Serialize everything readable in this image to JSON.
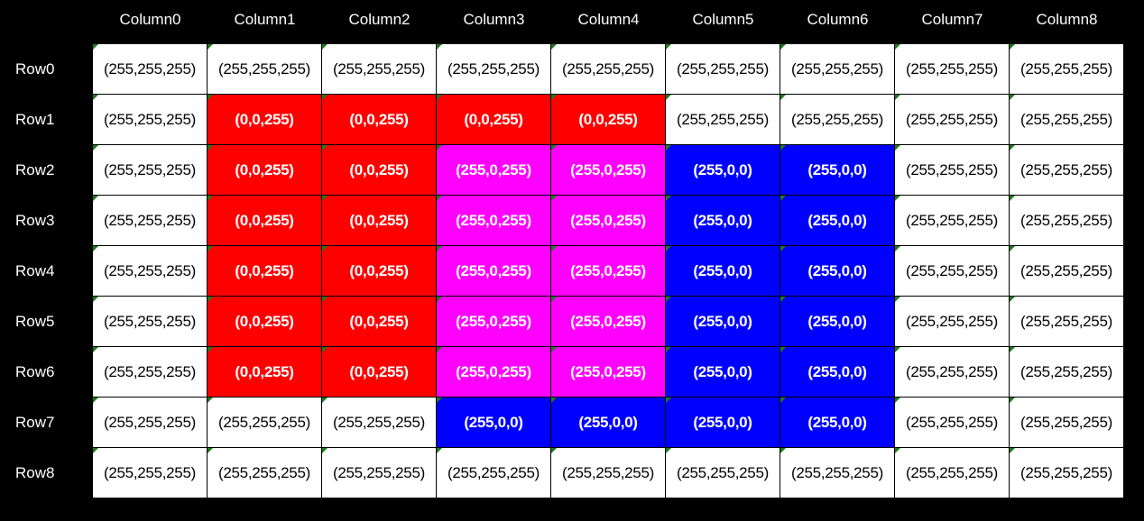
{
  "columns": [
    "Column0",
    "Column1",
    "Column2",
    "Column3",
    "Column4",
    "Column5",
    "Column6",
    "Column7",
    "Column8"
  ],
  "rows": [
    "Row0",
    "Row1",
    "Row2",
    "Row3",
    "Row4",
    "Row5",
    "Row6",
    "Row7",
    "Row8"
  ],
  "cells": [
    [
      "(255,255,255)",
      "(255,255,255)",
      "(255,255,255)",
      "(255,255,255)",
      "(255,255,255)",
      "(255,255,255)",
      "(255,255,255)",
      "(255,255,255)",
      "(255,255,255)"
    ],
    [
      "(255,255,255)",
      "(0,0,255)",
      "(0,0,255)",
      "(0,0,255)",
      "(0,0,255)",
      "(255,255,255)",
      "(255,255,255)",
      "(255,255,255)",
      "(255,255,255)"
    ],
    [
      "(255,255,255)",
      "(0,0,255)",
      "(0,0,255)",
      "(255,0,255)",
      "(255,0,255)",
      "(255,0,0)",
      "(255,0,0)",
      "(255,255,255)",
      "(255,255,255)"
    ],
    [
      "(255,255,255)",
      "(0,0,255)",
      "(0,0,255)",
      "(255,0,255)",
      "(255,0,255)",
      "(255,0,0)",
      "(255,0,0)",
      "(255,255,255)",
      "(255,255,255)"
    ],
    [
      "(255,255,255)",
      "(0,0,255)",
      "(0,0,255)",
      "(255,0,255)",
      "(255,0,255)",
      "(255,0,0)",
      "(255,0,0)",
      "(255,255,255)",
      "(255,255,255)"
    ],
    [
      "(255,255,255)",
      "(0,0,255)",
      "(0,0,255)",
      "(255,0,255)",
      "(255,0,255)",
      "(255,0,0)",
      "(255,0,0)",
      "(255,255,255)",
      "(255,255,255)"
    ],
    [
      "(255,255,255)",
      "(0,0,255)",
      "(0,0,255)",
      "(255,0,255)",
      "(255,0,255)",
      "(255,0,0)",
      "(255,0,0)",
      "(255,255,255)",
      "(255,255,255)"
    ],
    [
      "(255,255,255)",
      "(255,255,255)",
      "(255,255,255)",
      "(255,0,0)",
      "(255,0,0)",
      "(255,0,0)",
      "(255,0,0)",
      "(255,255,255)",
      "(255,255,255)"
    ],
    [
      "(255,255,255)",
      "(255,255,255)",
      "(255,255,255)",
      "(255,255,255)",
      "(255,255,255)",
      "(255,255,255)",
      "(255,255,255)",
      "(255,255,255)",
      "(255,255,255)"
    ]
  ],
  "colors": {
    "background": "#000000",
    "header_text": "#ffffff",
    "corner_marker": "#1e7b1e"
  }
}
